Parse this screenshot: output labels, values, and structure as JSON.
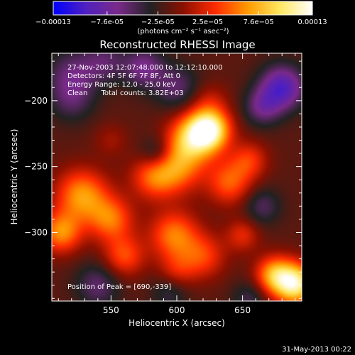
{
  "chart_data": {
    "type": "heatmap",
    "title": "Reconstructed RHESSI Image",
    "xlabel": "Heliocentric X (arcsec)",
    "ylabel": "Heliocentric Y (arcsec)",
    "xlim": [
      505,
      695
    ],
    "ylim": [
      -352,
      -164
    ],
    "xticks": [
      550,
      600,
      650
    ],
    "yticks": [
      -200,
      -250,
      -300
    ],
    "annotations": [
      "27-Nov-2003 12:07:48.000 to 12:12:10.000",
      "Detectors: 4F 5F 6F 7F 8F, Att 0",
      "Energy Range: 12.0 - 25.0 keV",
      "Clean      Total counts: 3.82E+03"
    ],
    "peak_label": "Position of Peak = [690,-339]",
    "peak": [
      690,
      -339
    ],
    "footer_date": "31-May-2013 00:22",
    "colorbar": {
      "min": -0.00013,
      "max": 0.00013,
      "tick_labels": [
        "-0.00013",
        "-7.6e-05",
        "-2.5e-05",
        "2.5e-05",
        "7.6e-05",
        "0.00013"
      ],
      "unit_label": "(photons cm⁻² s⁻¹ asec⁻²)",
      "colors": [
        "#0000ff",
        "#5020c0",
        "#7a2a8a",
        "#222222",
        "#8a1000",
        "#ff2a00",
        "#ff9a00",
        "#ffe860",
        "#ffffff"
      ]
    },
    "sources": [
      {
        "x": 625,
        "y": -222,
        "flux": 0.00012,
        "sigma": 11
      },
      {
        "x": 612,
        "y": -228,
        "flux": 8.5e-05,
        "sigma": 13
      },
      {
        "x": 600,
        "y": -250,
        "flux": 7e-05,
        "sigma": 14
      },
      {
        "x": 582,
        "y": -258,
        "flux": 5.5e-05,
        "sigma": 12
      },
      {
        "x": 640,
        "y": -262,
        "flux": 6e-05,
        "sigma": 12
      },
      {
        "x": 655,
        "y": -245,
        "flux": 4.5e-05,
        "sigma": 10
      },
      {
        "x": 528,
        "y": -272,
        "flux": 8e-05,
        "sigma": 14
      },
      {
        "x": 512,
        "y": -300,
        "flux": 7.5e-05,
        "sigma": 11
      },
      {
        "x": 550,
        "y": -290,
        "flux": 6.5e-05,
        "sigma": 12
      },
      {
        "x": 560,
        "y": -318,
        "flux": 5.5e-05,
        "sigma": 11
      },
      {
        "x": 598,
        "y": -302,
        "flux": 7e-05,
        "sigma": 13
      },
      {
        "x": 620,
        "y": -318,
        "flux": 5e-05,
        "sigma": 12
      },
      {
        "x": 674,
        "y": -332,
        "flux": 8e-05,
        "sigma": 10
      },
      {
        "x": 690,
        "y": -339,
        "flux": 0.000125,
        "sigma": 11
      },
      {
        "x": 650,
        "y": -302,
        "flux": 4e-05,
        "sigma": 9
      },
      {
        "x": 600,
        "y": -330,
        "flux": 3.5e-05,
        "sigma": 10
      },
      {
        "x": 625,
        "y": -200,
        "flux": 2.5e-05,
        "sigma": 10
      },
      {
        "x": 550,
        "y": -230,
        "flux": 2e-05,
        "sigma": 9
      },
      {
        "x": 520,
        "y": -180,
        "flux": -4e-05,
        "sigma": 14
      },
      {
        "x": 545,
        "y": -170,
        "flux": -3.5e-05,
        "sigma": 12
      },
      {
        "x": 575,
        "y": -175,
        "flux": -5e-05,
        "sigma": 11
      },
      {
        "x": 600,
        "y": -190,
        "flux": -4e-05,
        "sigma": 12
      },
      {
        "x": 680,
        "y": -190,
        "flux": -8e-05,
        "sigma": 12
      },
      {
        "x": 665,
        "y": -205,
        "flux": -4.5e-05,
        "sigma": 10
      },
      {
        "x": 520,
        "y": -200,
        "flux": -3e-05,
        "sigma": 12
      },
      {
        "x": 585,
        "y": -240,
        "flux": -4.5e-05,
        "sigma": 9
      },
      {
        "x": 540,
        "y": -340,
        "flux": -4e-05,
        "sigma": 12
      },
      {
        "x": 595,
        "y": -345,
        "flux": -3e-05,
        "sigma": 10
      },
      {
        "x": 665,
        "y": -280,
        "flux": -3.5e-05,
        "sigma": 10
      },
      {
        "x": 655,
        "y": -350,
        "flux": -3e-05,
        "sigma": 9
      }
    ]
  }
}
